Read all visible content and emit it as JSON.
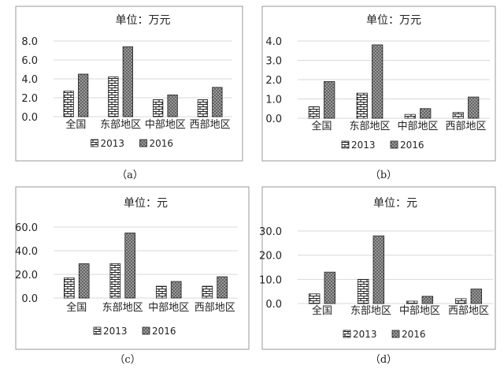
{
  "chart_data": [
    {
      "type": "bar",
      "title": "单位：万元",
      "categories": [
        "全国",
        "东部地区",
        "中部地区",
        "西部地区"
      ],
      "series": [
        {
          "name": "2013",
          "values": [
            2.7,
            4.2,
            1.8,
            1.8
          ]
        },
        {
          "name": "2016",
          "values": [
            4.5,
            7.4,
            2.3,
            3.1
          ]
        }
      ],
      "yticks": [
        "0.0",
        "2.0",
        "4.0",
        "6.0",
        "8.0"
      ],
      "ylim": [
        0,
        8
      ],
      "grid": true,
      "legend": "bottom",
      "caption": "（a）"
    },
    {
      "type": "bar",
      "title": "单位：万元",
      "categories": [
        "全国",
        "东部地区",
        "中部地区",
        "西部地区"
      ],
      "series": [
        {
          "name": "2013",
          "values": [
            0.6,
            1.3,
            0.2,
            0.3
          ]
        },
        {
          "name": "2016",
          "values": [
            1.9,
            3.8,
            0.5,
            1.1
          ]
        }
      ],
      "yticks": [
        "0.0",
        "1.0",
        "2.0",
        "3.0",
        "4.0"
      ],
      "ylim": [
        0,
        4
      ],
      "grid": true,
      "legend": "bottom",
      "caption": "（b）"
    },
    {
      "type": "bar",
      "title": "单位：元",
      "categories": [
        "全国",
        "东部地区",
        "中部地区",
        "西部地区"
      ],
      "series": [
        {
          "name": "2013",
          "values": [
            17,
            29,
            10,
            10
          ]
        },
        {
          "name": "2016",
          "values": [
            29,
            55,
            14,
            18
          ]
        }
      ],
      "yticks": [
        "0.0",
        "20.0",
        "40.0",
        "60.0"
      ],
      "ylim": [
        0,
        60
      ],
      "grid": true,
      "legend": "bottom",
      "caption": "（c）"
    },
    {
      "type": "bar",
      "title": "单位：元",
      "categories": [
        "全国",
        "东部地区",
        "中部地区",
        "西部地区"
      ],
      "series": [
        {
          "name": "2013",
          "values": [
            4,
            10,
            1,
            2
          ]
        },
        {
          "name": "2016",
          "values": [
            13,
            28,
            3,
            6
          ]
        }
      ],
      "yticks": [
        "0.0",
        "10.0",
        "20.0",
        "30.0"
      ],
      "ylim": [
        0,
        30
      ],
      "grid": true,
      "legend": "bottom",
      "caption": "（d）"
    }
  ],
  "colors": {
    "frame": "#9a9a9a",
    "grid": "#d9d9d9",
    "bar_2016": "#8a8a8a",
    "bar_2013_fill": "#ffffff"
  }
}
